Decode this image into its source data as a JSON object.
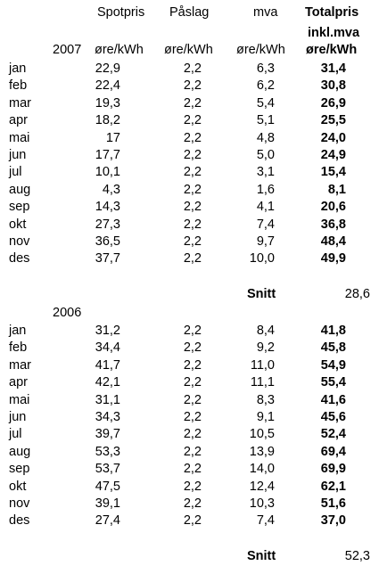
{
  "header": {
    "col_spot": "Spotpris",
    "col_paslag": "Påslag",
    "col_mva": "mva",
    "col_total_line1": "Totalpris",
    "col_total_line2": "inkl.mva",
    "unit": "øre/kWh"
  },
  "sections": [
    {
      "year": "2007",
      "rows": [
        {
          "month": "jan",
          "spot": "22,9",
          "paslag": "2,2",
          "mva": "6,3",
          "total": "31,4"
        },
        {
          "month": "feb",
          "spot": "22,4",
          "paslag": "2,2",
          "mva": "6,2",
          "total": "30,8"
        },
        {
          "month": "mar",
          "spot": "19,3",
          "paslag": "2,2",
          "mva": "5,4",
          "total": "26,9"
        },
        {
          "month": "apr",
          "spot": "18,2",
          "paslag": "2,2",
          "mva": "5,1",
          "total": "25,5"
        },
        {
          "month": "mai",
          "spot": "17",
          "paslag": "2,2",
          "mva": "4,8",
          "total": "24,0"
        },
        {
          "month": "jun",
          "spot": "17,7",
          "paslag": "2,2",
          "mva": "5,0",
          "total": "24,9"
        },
        {
          "month": "jul",
          "spot": "10,1",
          "paslag": "2,2",
          "mva": "3,1",
          "total": "15,4"
        },
        {
          "month": "aug",
          "spot": "4,3",
          "paslag": "2,2",
          "mva": "1,6",
          "total": "8,1"
        },
        {
          "month": "sep",
          "spot": "14,3",
          "paslag": "2,2",
          "mva": "4,1",
          "total": "20,6"
        },
        {
          "month": "okt",
          "spot": "27,3",
          "paslag": "2,2",
          "mva": "7,4",
          "total": "36,8"
        },
        {
          "month": "nov",
          "spot": "36,5",
          "paslag": "2,2",
          "mva": "9,7",
          "total": "48,4"
        },
        {
          "month": "des",
          "spot": "37,7",
          "paslag": "2,2",
          "mva": "10,0",
          "total": "49,9"
        }
      ],
      "avg_label": "Snitt",
      "avg_value": "28,6"
    },
    {
      "year": "2006",
      "rows": [
        {
          "month": "jan",
          "spot": "31,2",
          "paslag": "2,2",
          "mva": "8,4",
          "total": "41,8"
        },
        {
          "month": "feb",
          "spot": "34,4",
          "paslag": "2,2",
          "mva": "9,2",
          "total": "45,8"
        },
        {
          "month": "mar",
          "spot": "41,7",
          "paslag": "2,2",
          "mva": "11,0",
          "total": "54,9"
        },
        {
          "month": "apr",
          "spot": "42,1",
          "paslag": "2,2",
          "mva": "11,1",
          "total": "55,4"
        },
        {
          "month": "mai",
          "spot": "31,1",
          "paslag": "2,2",
          "mva": "8,3",
          "total": "41,6"
        },
        {
          "month": "jun",
          "spot": "34,3",
          "paslag": "2,2",
          "mva": "9,1",
          "total": "45,6"
        },
        {
          "month": "jul",
          "spot": "39,7",
          "paslag": "2,2",
          "mva": "10,5",
          "total": "52,4"
        },
        {
          "month": "aug",
          "spot": "53,3",
          "paslag": "2,2",
          "mva": "13,9",
          "total": "69,4"
        },
        {
          "month": "sep",
          "spot": "53,7",
          "paslag": "2,2",
          "mva": "14,0",
          "total": "69,9"
        },
        {
          "month": "okt",
          "spot": "47,5",
          "paslag": "2,2",
          "mva": "12,4",
          "total": "62,1"
        },
        {
          "month": "nov",
          "spot": "39,1",
          "paslag": "2,2",
          "mva": "10,3",
          "total": "51,6"
        },
        {
          "month": "des",
          "spot": "27,4",
          "paslag": "2,2",
          "mva": "7,4",
          "total": "37,0"
        }
      ],
      "avg_label": "Snitt",
      "avg_value": "52,3"
    }
  ]
}
